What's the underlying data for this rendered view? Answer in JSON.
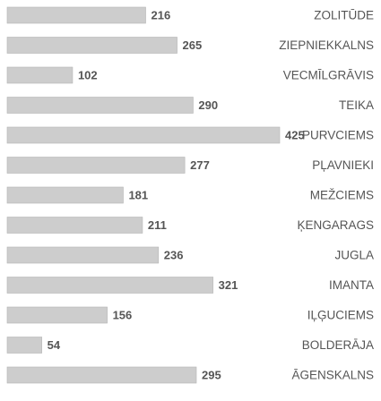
{
  "chart_data": {
    "type": "bar",
    "orientation": "horizontal",
    "categories": [
      "ZOLITŪDE",
      "ZIEPNIEKKALNS",
      "VECMĪLGRĀVIS",
      "TEIKA",
      "PURVCIEMS",
      "PĻAVNIEKI",
      "MEŽCIEMS",
      "ĶENGARAGS",
      "JUGLA",
      "IMANTA",
      "IĻĢUCIEMS",
      "BOLDERĀJA",
      "ĀGENSKALNS"
    ],
    "values": [
      216,
      265,
      102,
      290,
      425,
      277,
      181,
      211,
      236,
      321,
      156,
      54,
      295
    ],
    "color": "#cdcdcd"
  }
}
